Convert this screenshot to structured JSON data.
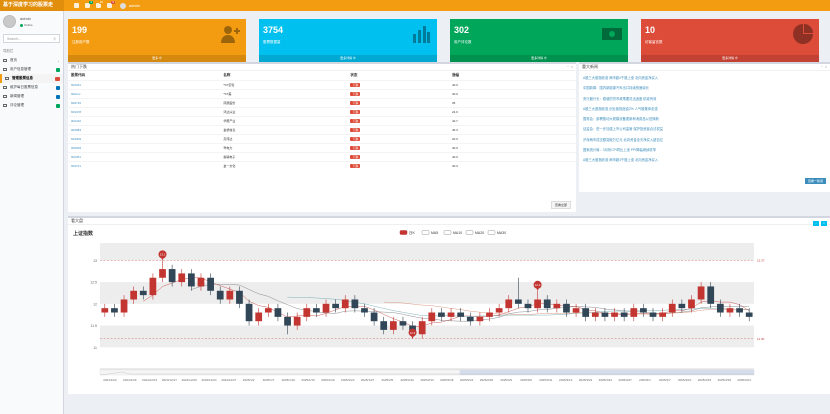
{
  "app": {
    "title": "基于深度学习的股票走"
  },
  "topbar": {
    "icons": [
      {
        "name": "tag-icon",
        "badge": ""
      },
      {
        "name": "mail-icon",
        "badge": "4"
      },
      {
        "name": "bell-icon",
        "badge": "10"
      },
      {
        "name": "flag-icon",
        "badge": "9"
      }
    ],
    "user": "admin"
  },
  "sidebar": {
    "user_name": "admin",
    "user_status": "Online",
    "search_placeholder": "Search...",
    "section_label": "导航栏",
    "items": [
      {
        "label": "首页",
        "badge": "",
        "active": false
      },
      {
        "label": "用户信息管理",
        "badge": "",
        "active": false
      },
      {
        "label": "管理股票信息",
        "badge": "",
        "active": true
      },
      {
        "label": "维护每日股票信息",
        "badge": "",
        "active": false
      },
      {
        "label": "新闻管理",
        "badge": "",
        "active": false
      },
      {
        "label": "评论管理",
        "badge": "",
        "active": false
      }
    ]
  },
  "colors": {
    "accent": "#f39c12",
    "orange": "#f39c12",
    "cyan": "#00c0ef",
    "green": "#00a65a",
    "red": "#dd4b39",
    "up": "#c23531",
    "down": "#314656"
  },
  "stat_boxes": [
    {
      "value": "199",
      "label": "注册用户数",
      "footer": "更多 ⊕",
      "color": "#f39c12",
      "icon": "user-add-icon"
    },
    {
      "value": "3754",
      "label": "股票数据量",
      "footer": "更多详情 ⊕",
      "color": "#00c0ef",
      "icon": "bar-chart-icon"
    },
    {
      "value": "302",
      "label": "用户评论数",
      "footer": "更多详情 ⊕",
      "color": "#00a65a",
      "icon": "money-icon"
    },
    {
      "value": "10",
      "label": "访客留言数",
      "footer": "更多详情 ⊕",
      "color": "#dd4b39",
      "icon": "pie-chart-icon"
    }
  ],
  "hot_stocks": {
    "title": "热门下跌",
    "columns": [
      "股票代码",
      "名称",
      "状态",
      "涨幅"
    ],
    "rows": [
      {
        "code": "002031",
        "name": "*ST巨轮",
        "status": "下跌",
        "change": "40.0"
      },
      {
        "code": "002xxx",
        "name": "*ST美",
        "status": "下跌",
        "change": "40.0"
      },
      {
        "code": "600716",
        "name": "凤凰股份",
        "status": "下跌",
        "change": "35"
      },
      {
        "code": "603478",
        "name": "鸿达兴业",
        "status": "下跌",
        "change": "24.9"
      },
      {
        "code": "002410",
        "name": "华帮产业",
        "status": "下跌",
        "change": "42.7"
      },
      {
        "code": "002983",
        "name": "金桥信息",
        "status": "下跌",
        "change": "46.3"
      },
      {
        "code": "603309",
        "name": "高伟达",
        "status": "下跌",
        "change": "20.0"
      },
      {
        "code": "000539",
        "name": "粤电力",
        "status": "下跌",
        "change": "40.0"
      },
      {
        "code": "002351",
        "name": "奥联电子",
        "status": "下跌",
        "change": "40.0"
      },
      {
        "code": "002721",
        "name": "金一文化",
        "status": "下跌",
        "change": "40.3"
      }
    ],
    "more_label": "查看全部"
  },
  "news": {
    "title": "重大新闻",
    "items": [
      "A股三大股指收涨 两市超4千股上涨 北向资金净买入",
      "中国新闻：国内新能源汽车出口持续快速增长",
      "央行副行长：稳健的货币政策要灵活适度 精准有效",
      "A股三大股指收涨 创业板指涨逾2% 人气股集体走强",
      "国常会：部署推动大规模设备更新和消费品以旧换新",
      "证监会：进一步加强上市公司监管 保护投资者合法权益",
      "沪深两市成交额突破万亿元 北向资金全天净买入超百亿",
      "国家统计局：3月份CPI同比上涨 PPI降幅继续收窄",
      "A股三大股指收涨 两市超4千股上涨 北向资金净买入"
    ],
    "more_label": "查看一新闻"
  },
  "chart_section": {
    "title": "看大盘"
  },
  "chart_data": {
    "type": "candlestick",
    "title": "上证指数",
    "legend": [
      "日K",
      "MA5",
      "MA10",
      "MA20",
      "MA30"
    ],
    "ylim": [
      10.5,
      13.4
    ],
    "yticks": [
      "13",
      "12.5",
      "12",
      "11.5",
      "11"
    ],
    "xticks": [
      "2024/12/3",
      "2024/12/9",
      "2024/12/13",
      "2024/12/17",
      "2024/12/20",
      "2024/12/24",
      "2024/12/27",
      "2025/1/2",
      "2025/1/7",
      "2025/1/10",
      "2025/1/15",
      "2025/1/20",
      "2025/1/23",
      "2025/1/27",
      "2025/2/5",
      "2025/2/10",
      "2025/2/13",
      "2025/2/18",
      "2025/2/21",
      "2025/2/26",
      "2025/3/3",
      "2025/3/6",
      "2025/3/11",
      "2025/3/14",
      "2025/3/19",
      "2025/3/24",
      "2025/3/27",
      "2025/4/1",
      "2025/4/7",
      "2025/4/10",
      "2025/4/15",
      "2025/4/18",
      "2025/4/24"
    ],
    "markers": [
      {
        "label": "13.1",
        "type": "max"
      },
      {
        "label": "11.3",
        "type": "min"
      },
      {
        "label": "12.3",
        "type": "point"
      }
    ],
    "line_labels": [
      "11.30",
      "12.37"
    ],
    "candles": [
      [
        11.8,
        11.9,
        11.7,
        12.0
      ],
      [
        11.9,
        11.8,
        11.7,
        12.0
      ],
      [
        11.8,
        12.1,
        11.7,
        12.2
      ],
      [
        12.1,
        12.3,
        12.0,
        12.4
      ],
      [
        12.3,
        12.2,
        12.1,
        12.4
      ],
      [
        12.2,
        12.6,
        12.1,
        12.7
      ],
      [
        12.6,
        12.8,
        12.5,
        13.0
      ],
      [
        12.8,
        12.5,
        12.4,
        12.9
      ],
      [
        12.5,
        12.7,
        12.4,
        12.8
      ],
      [
        12.7,
        12.4,
        12.3,
        12.8
      ],
      [
        12.4,
        12.6,
        12.3,
        12.7
      ],
      [
        12.6,
        12.3,
        12.2,
        12.7
      ],
      [
        12.3,
        12.1,
        12.0,
        12.4
      ],
      [
        12.1,
        12.3,
        12.0,
        12.4
      ],
      [
        12.3,
        12.0,
        11.9,
        12.4
      ],
      [
        12.0,
        11.6,
        11.5,
        12.1
      ],
      [
        11.6,
        11.8,
        11.5,
        11.9
      ],
      [
        11.8,
        11.9,
        11.7,
        12.0
      ],
      [
        11.9,
        11.7,
        11.6,
        12.0
      ],
      [
        11.7,
        11.5,
        11.3,
        11.8
      ],
      [
        11.5,
        11.7,
        11.4,
        11.8
      ],
      [
        11.7,
        11.9,
        11.6,
        12.0
      ],
      [
        11.9,
        11.8,
        11.7,
        12.0
      ],
      [
        11.8,
        12.0,
        11.7,
        12.1
      ],
      [
        12.0,
        11.9,
        11.8,
        12.1
      ],
      [
        11.9,
        12.1,
        11.8,
        12.2
      ],
      [
        12.1,
        11.9,
        11.8,
        12.2
      ],
      [
        11.9,
        11.8,
        11.7,
        12.0
      ],
      [
        11.8,
        11.6,
        11.5,
        11.9
      ],
      [
        11.6,
        11.4,
        11.3,
        11.7
      ],
      [
        11.4,
        11.6,
        11.3,
        11.7
      ],
      [
        11.6,
        11.5,
        11.4,
        11.7
      ],
      [
        11.5,
        11.3,
        11.2,
        11.6
      ],
      [
        11.3,
        11.6,
        11.2,
        11.7
      ],
      [
        11.6,
        11.8,
        11.5,
        11.9
      ],
      [
        11.8,
        11.7,
        11.6,
        11.9
      ],
      [
        11.7,
        11.8,
        11.6,
        11.9
      ],
      [
        11.8,
        11.7,
        11.6,
        11.9
      ],
      [
        11.7,
        11.6,
        11.5,
        11.8
      ],
      [
        11.6,
        11.7,
        11.5,
        11.8
      ],
      [
        11.7,
        11.8,
        11.6,
        11.9
      ],
      [
        11.8,
        11.9,
        11.7,
        12.0
      ],
      [
        11.9,
        12.1,
        11.8,
        12.2
      ],
      [
        12.1,
        12.0,
        11.9,
        12.6
      ],
      [
        12.0,
        11.9,
        11.8,
        12.1
      ],
      [
        11.9,
        12.1,
        11.8,
        12.3
      ],
      [
        12.1,
        11.9,
        11.8,
        12.2
      ],
      [
        11.9,
        12.0,
        11.8,
        12.1
      ],
      [
        12.0,
        11.8,
        11.7,
        12.1
      ],
      [
        11.8,
        11.9,
        11.7,
        12.0
      ],
      [
        11.9,
        11.7,
        11.6,
        12.0
      ],
      [
        11.7,
        11.8,
        11.6,
        11.9
      ],
      [
        11.8,
        11.7,
        11.6,
        11.9
      ],
      [
        11.7,
        11.8,
        11.6,
        11.9
      ],
      [
        11.8,
        11.7,
        11.6,
        11.9
      ],
      [
        11.7,
        11.9,
        11.6,
        12.0
      ],
      [
        11.9,
        11.8,
        11.7,
        12.0
      ],
      [
        11.8,
        11.7,
        11.6,
        11.9
      ],
      [
        11.7,
        11.8,
        11.6,
        11.9
      ],
      [
        11.8,
        12.0,
        11.7,
        12.1
      ],
      [
        12.0,
        11.9,
        11.8,
        12.1
      ],
      [
        11.9,
        12.1,
        11.8,
        12.2
      ],
      [
        12.1,
        12.4,
        12.0,
        12.5
      ],
      [
        12.4,
        12.0,
        11.9,
        12.5
      ],
      [
        12.0,
        11.8,
        11.7,
        12.1
      ],
      [
        11.8,
        11.9,
        11.7,
        12.0
      ],
      [
        11.9,
        11.8,
        11.7,
        12.0
      ],
      [
        11.8,
        11.7,
        11.6,
        11.9
      ]
    ]
  }
}
